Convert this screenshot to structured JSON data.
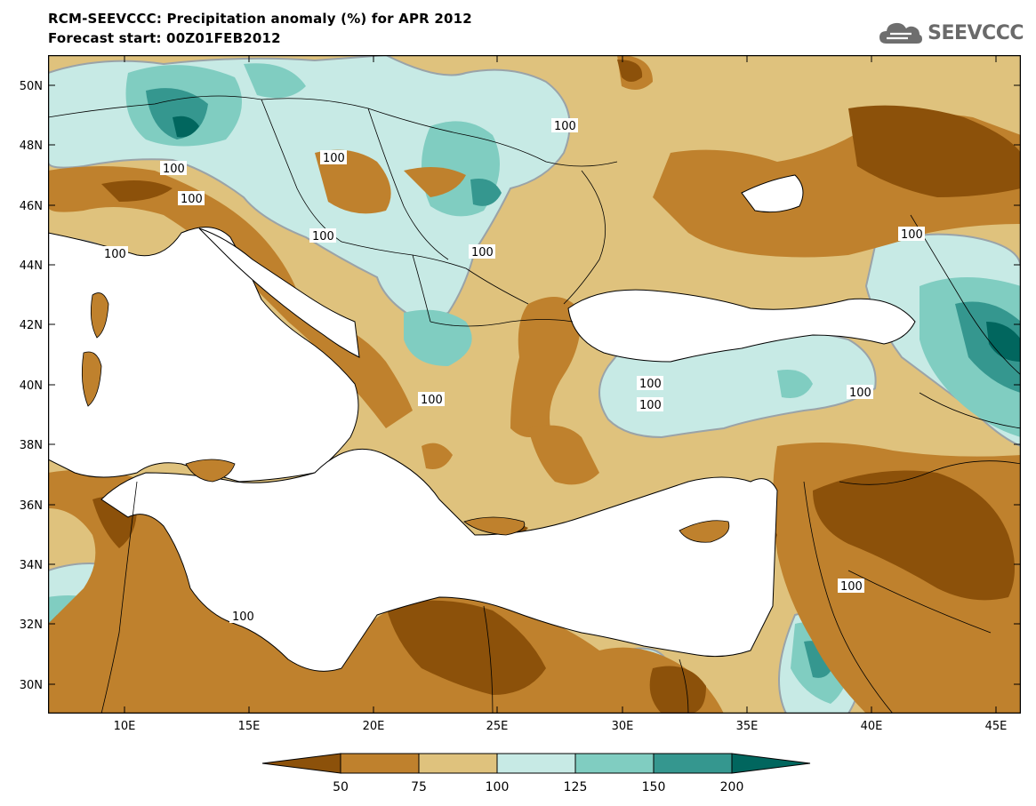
{
  "header": {
    "title": "RCM-SEEVCCC: Precipitation anomaly (%) for APR 2012",
    "subtitle": "Forecast start: 00Z01FEB2012",
    "logo_text": "SEEVCCC"
  },
  "map": {
    "lat_labels": [
      "50N",
      "48N",
      "46N",
      "44N",
      "42N",
      "40N",
      "38N",
      "36N",
      "34N",
      "32N",
      "30N"
    ],
    "lon_labels": [
      "10E",
      "15E",
      "20E",
      "25E",
      "30E",
      "35E",
      "40E",
      "45E"
    ],
    "contour_labels": [
      "100",
      "100",
      "100",
      "100",
      "100",
      "100",
      "100",
      "100",
      "100",
      "100",
      "100",
      "100",
      "100",
      "100"
    ]
  },
  "colorbar": {
    "labels": [
      "50",
      "75",
      "100",
      "125",
      "150",
      "200"
    ],
    "colors": [
      "#8c510a",
      "#bf812d",
      "#dfc27d",
      "#c7eae5",
      "#80cdc1",
      "#35978f",
      "#01665e"
    ]
  }
}
